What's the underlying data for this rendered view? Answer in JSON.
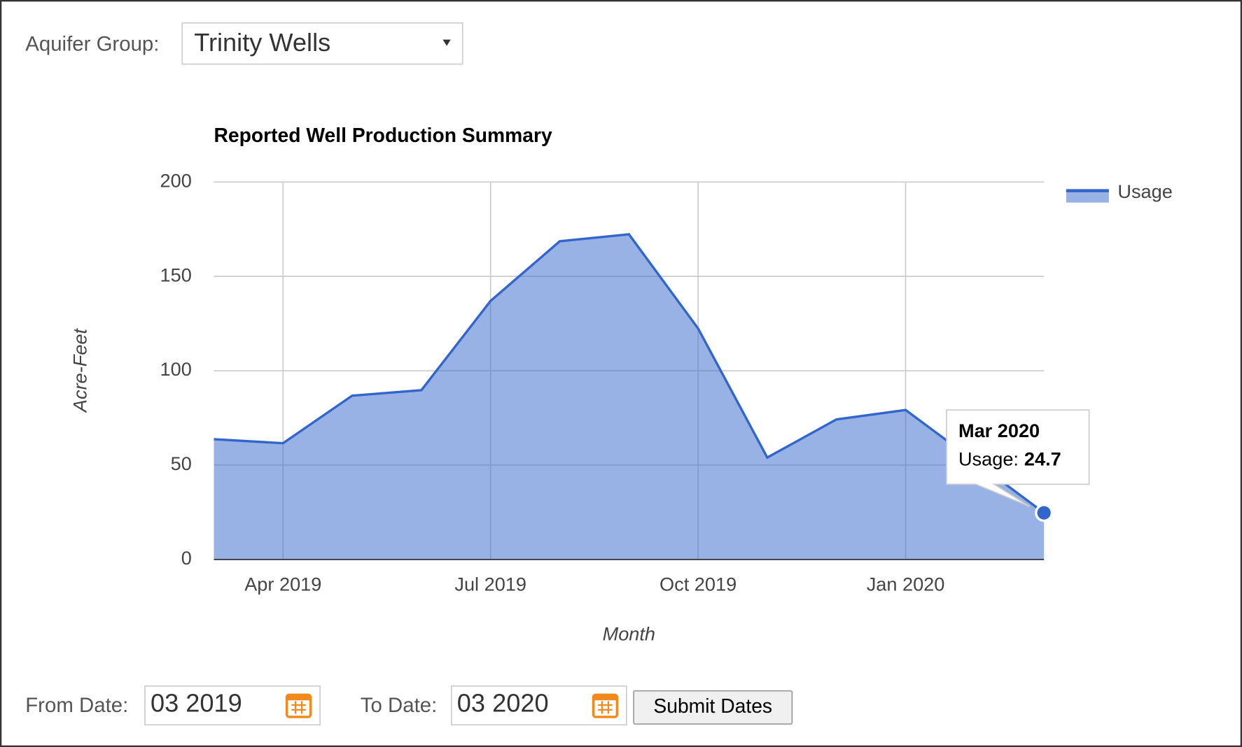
{
  "form": {
    "aquifer_label": "Aquifer Group:",
    "aquifer_value": "Trinity Wells",
    "from_label": "From Date:",
    "from_value": "03 2019",
    "to_label": "To Date:",
    "to_value": "03 2020",
    "submit": "Submit Dates"
  },
  "chart_data": {
    "type": "area",
    "title": "Reported Well Production Summary",
    "x_label": "Month",
    "y_label": "Acre-Feet",
    "x": [
      "2019-03",
      "2019-04",
      "2019-05",
      "2019-06",
      "2019-07",
      "2019-08",
      "2019-09",
      "2019-10",
      "2019-11",
      "2019-12",
      "2020-01",
      "2020-02",
      "2020-03"
    ],
    "series": [
      {
        "name": "Usage",
        "color": "#3366cc",
        "values": [
          63.7,
          61.6,
          86.8,
          89.7,
          137,
          168.6,
          172.3,
          122.4,
          54,
          74.2,
          79.2,
          52,
          24.7
        ]
      }
    ],
    "xlim": [
      "2019-03",
      "2020-03"
    ],
    "xticks": [
      {
        "value": "2019-04",
        "label": "Apr 2019"
      },
      {
        "value": "2019-07",
        "label": "Jul 2019"
      },
      {
        "value": "2019-10",
        "label": "Oct 2019"
      },
      {
        "value": "2020-01",
        "label": "Jan 2020"
      }
    ],
    "ylim": [
      0,
      200
    ],
    "yticks": [
      0,
      50,
      100,
      150,
      200
    ],
    "grid": true,
    "legend": "right",
    "tooltip": {
      "title": "Mar 2020",
      "label": "Usage:"
    }
  }
}
